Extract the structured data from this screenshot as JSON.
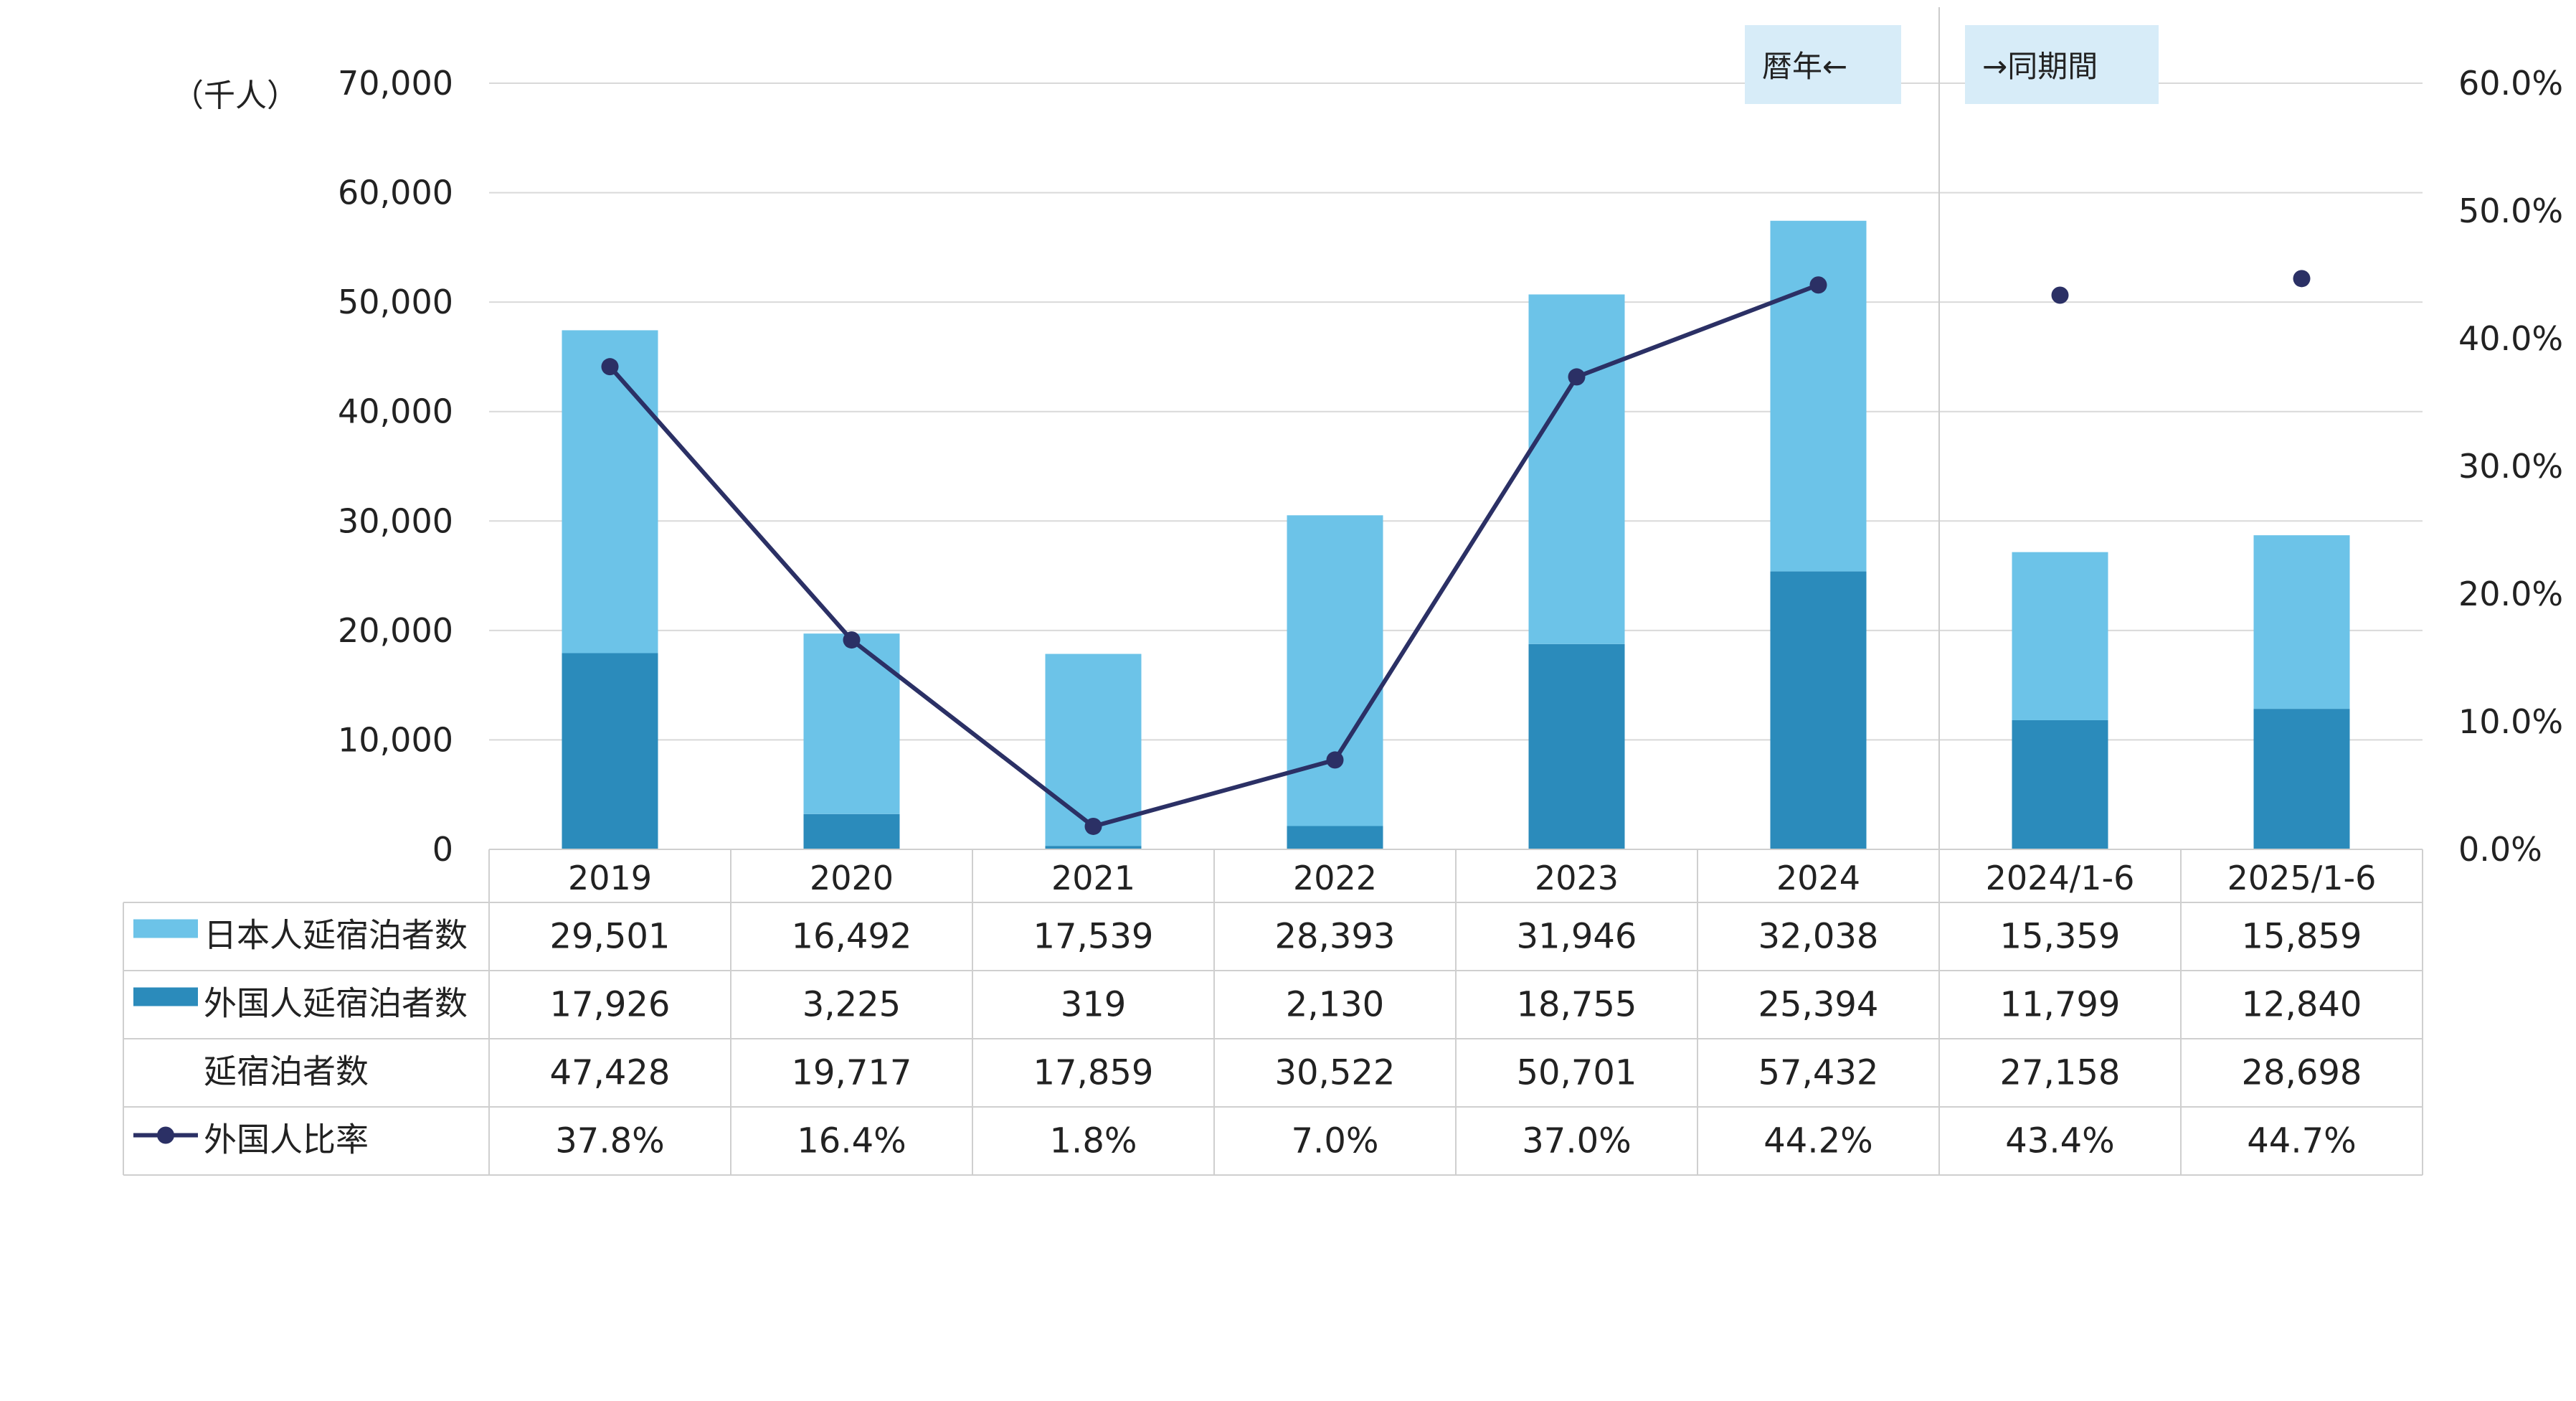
{
  "chart_data": {
    "type": "bar",
    "categories": [
      "2019",
      "2020",
      "2021",
      "2022",
      "2023",
      "2024",
      "2024/1-6",
      "2025/1-6"
    ],
    "series": [
      {
        "name": "日本人延宿泊者数",
        "type": "bar",
        "values": [
          29501,
          16492,
          17539,
          28393,
          31946,
          32038,
          15359,
          15859
        ],
        "color": "#6cc3e8"
      },
      {
        "name": "外国人延宿泊者数",
        "type": "bar",
        "values": [
          17926,
          3225,
          319,
          2130,
          18755,
          25394,
          11799,
          12840
        ],
        "color": "#2b8bbb"
      },
      {
        "name": "延宿泊者数",
        "type": "total",
        "values": [
          47428,
          19717,
          17859,
          30522,
          50701,
          57432,
          27158,
          28698
        ]
      },
      {
        "name": "外国人比率",
        "type": "line",
        "axis": "right",
        "values": [
          37.8,
          16.4,
          1.8,
          7.0,
          37.0,
          44.2,
          43.4,
          44.7
        ],
        "color": "#2b3065"
      }
    ],
    "table_values": {
      "jp": [
        "29,501",
        "16,492",
        "17,539",
        "28,393",
        "31,946",
        "32,038",
        "15,359",
        "15,859"
      ],
      "fg": [
        "17,926",
        "3,225",
        "319",
        "2,130",
        "18,755",
        "25,394",
        "11,799",
        "12,840"
      ],
      "total": [
        "47,428",
        "19,717",
        "17,859",
        "30,522",
        "50,701",
        "57,432",
        "27,158",
        "28,698"
      ],
      "ratio": [
        "37.8%",
        "16.4%",
        "1.8%",
        "7.0%",
        "37.0%",
        "44.2%",
        "43.4%",
        "44.7%"
      ]
    },
    "ylabel": "（千人）",
    "ylim": [
      0,
      70000
    ],
    "yticks": [
      "0",
      "10,000",
      "20,000",
      "30,000",
      "40,000",
      "50,000",
      "60,000",
      "70,000"
    ],
    "y2lim": [
      0,
      60
    ],
    "y2ticks": [
      "0.0%",
      "10.0%",
      "20.0%",
      "30.0%",
      "40.0%",
      "50.0%",
      "60.0%"
    ],
    "annotations": [
      "暦年←",
      "→同期間"
    ],
    "line_connected_through_index": 5,
    "grid": true,
    "legend": "table-left"
  }
}
